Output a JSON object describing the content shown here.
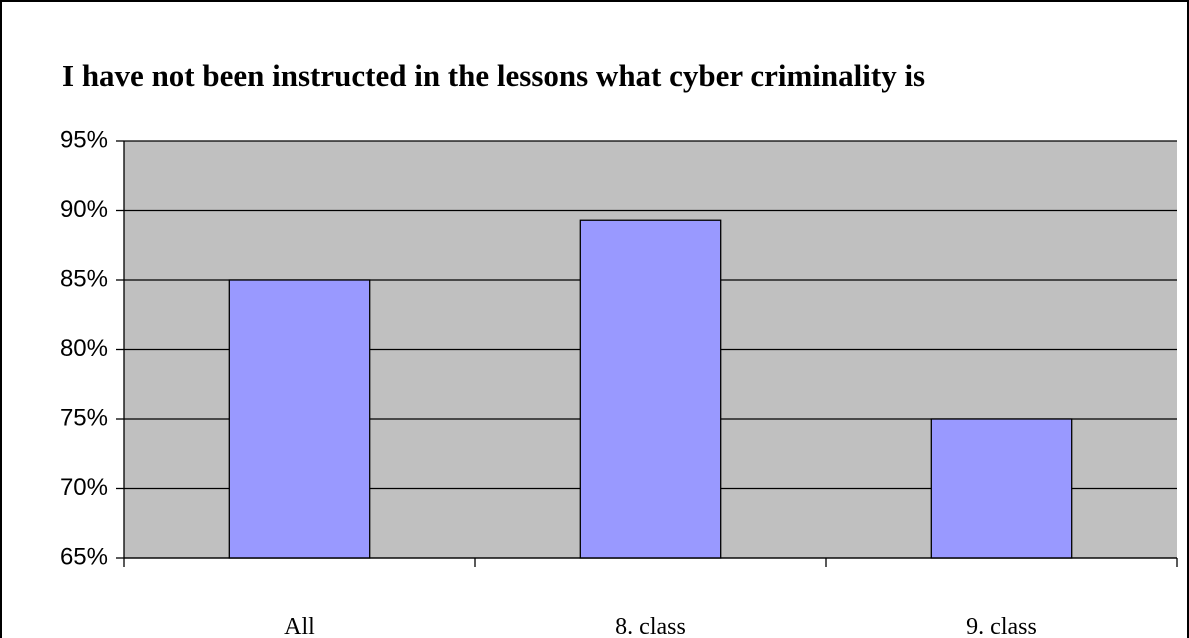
{
  "chart_data": {
    "type": "bar",
    "title": "I have not been instructed in the lessons what cyber criminality is",
    "categories": [
      "All",
      "8. class",
      "9. class"
    ],
    "values": [
      85,
      89.3,
      75
    ],
    "color": "#9999ff",
    "ylim": [
      65,
      95
    ],
    "yticks": [
      {
        "value": 65,
        "label": "65%"
      },
      {
        "value": 70,
        "label": "70%"
      },
      {
        "value": 75,
        "label": "75%"
      },
      {
        "value": 80,
        "label": "80%"
      },
      {
        "value": 85,
        "label": "85%"
      },
      {
        "value": 90,
        "label": "90%"
      },
      {
        "value": 95,
        "label": "95%"
      }
    ],
    "grid": true
  }
}
